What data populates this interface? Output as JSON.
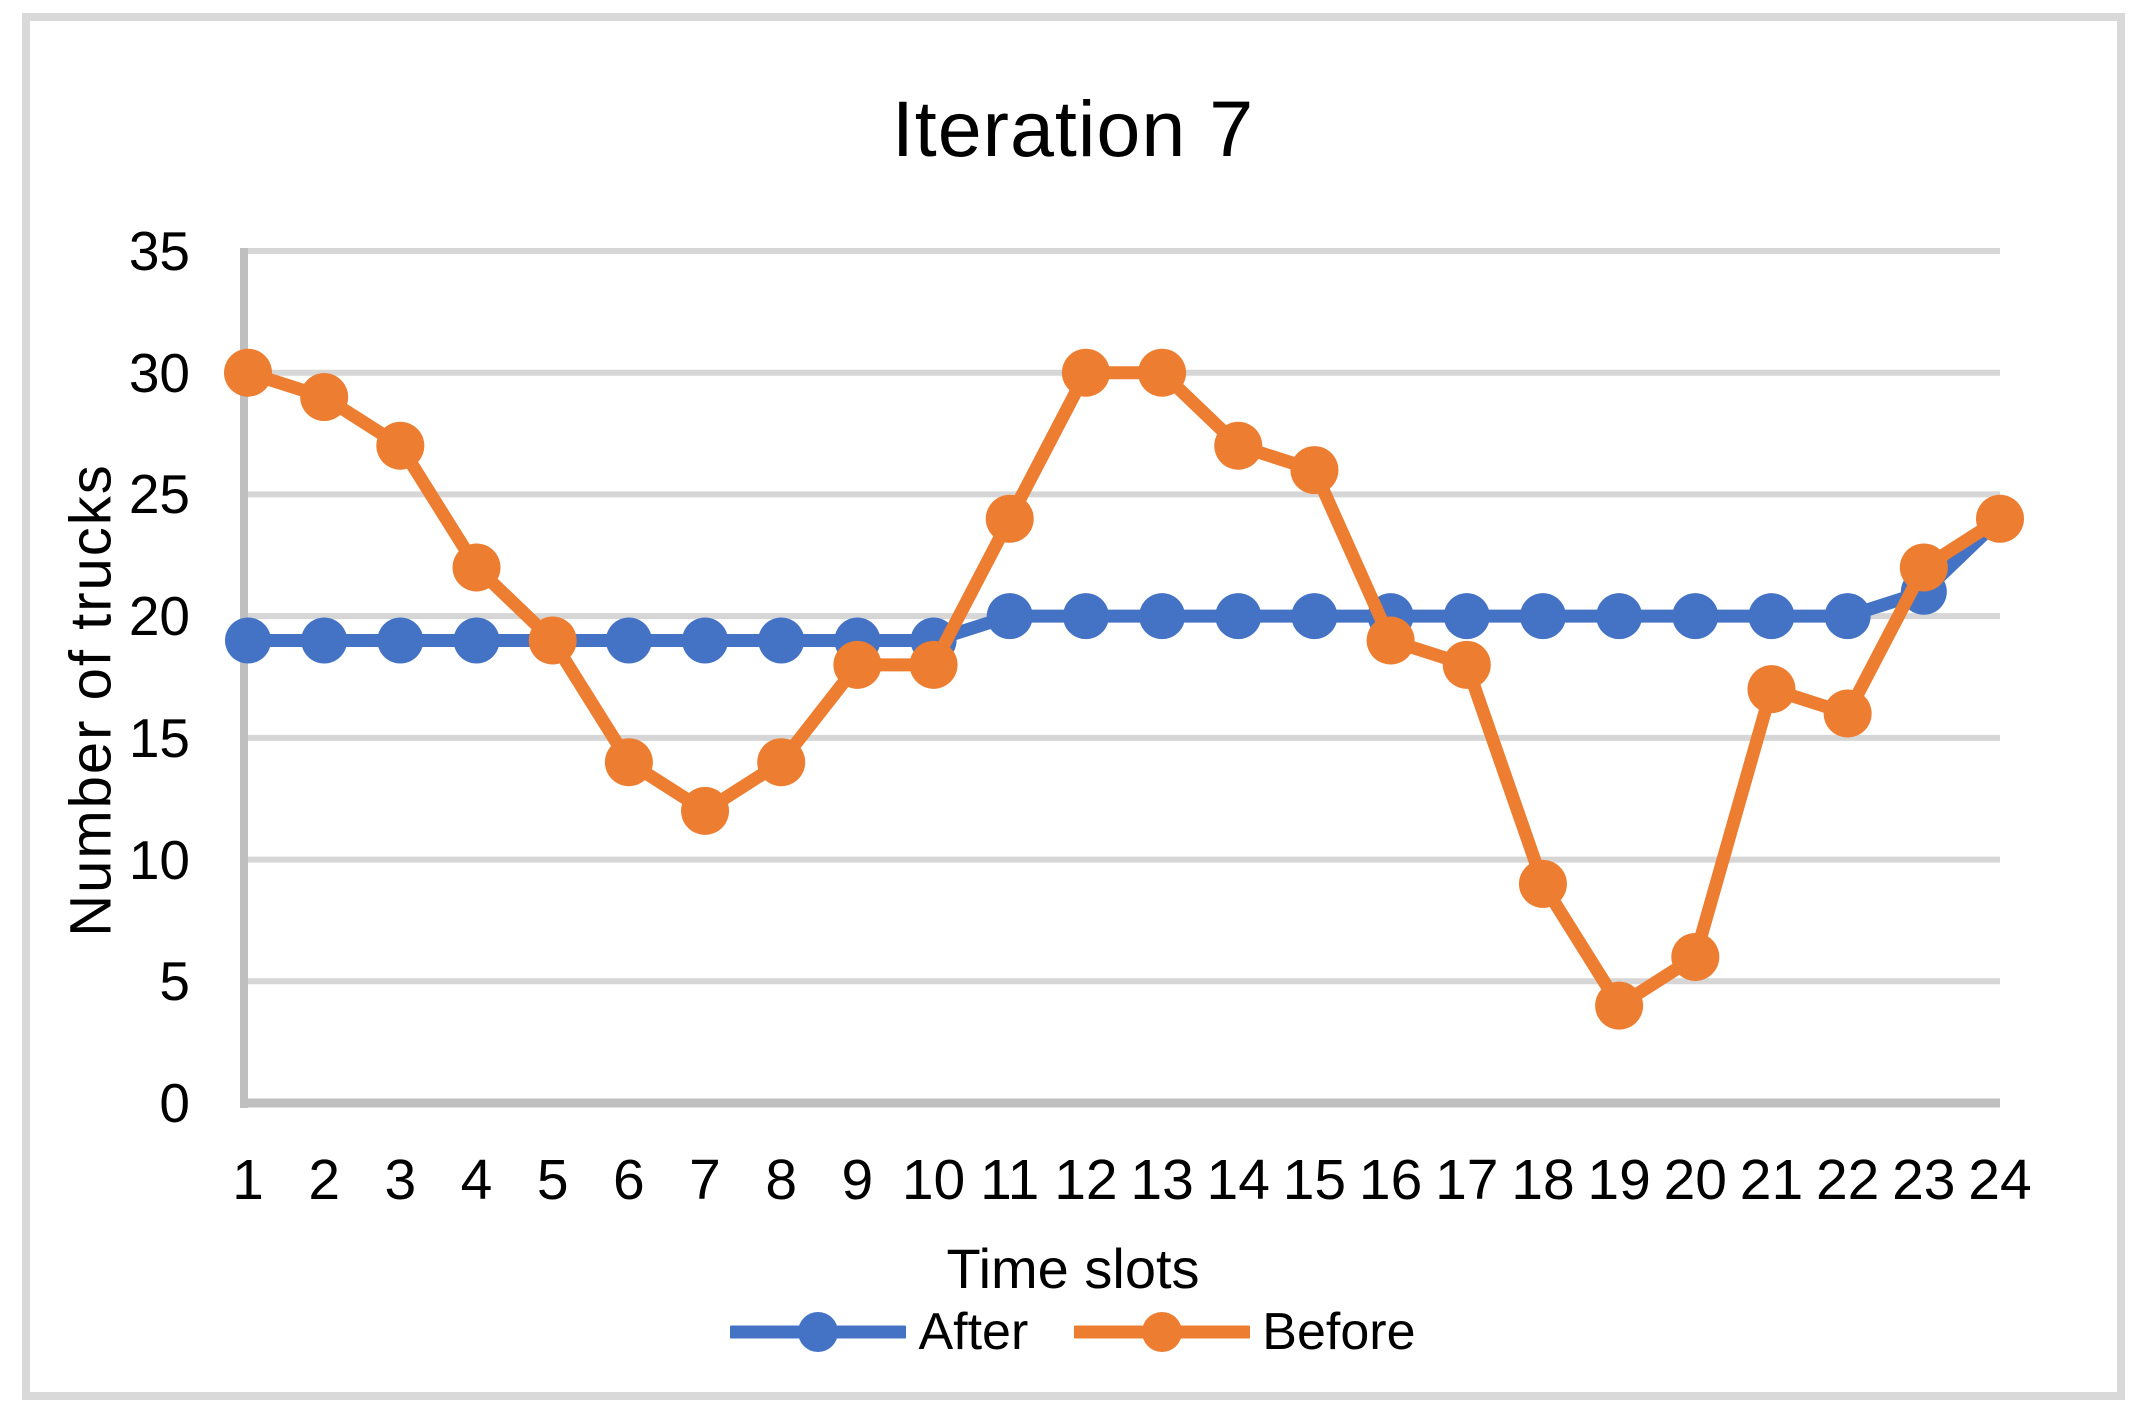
{
  "title": "Iteration 7",
  "y_axis": {
    "title": "Number of trucks",
    "tick_labels": [
      "0",
      "5",
      "10",
      "15",
      "20",
      "25",
      "30",
      "35"
    ],
    "tick_values": [
      0,
      5,
      10,
      15,
      20,
      25,
      30,
      35
    ]
  },
  "x_axis": {
    "title": "Time slots",
    "tick_labels": [
      "1",
      "2",
      "3",
      "4",
      "5",
      "6",
      "7",
      "8",
      "9",
      "10",
      "11",
      "12",
      "13",
      "14",
      "15",
      "16",
      "17",
      "18",
      "19",
      "20",
      "21",
      "22",
      "23",
      "24"
    ]
  },
  "legend": {
    "items": [
      {
        "label": "After",
        "color": "#4472C4",
        "marker": "circle-on-line"
      },
      {
        "label": "Before",
        "color": "#ED7D31",
        "marker": "circle-on-line"
      }
    ],
    "position": "bottom"
  },
  "colors": {
    "series_after": "#4472C4",
    "series_before": "#ED7D31",
    "gridline": "#D6D6D6",
    "axis_line": "#BFBFBF",
    "frame_border": "#D9D9D9",
    "text": "#000000",
    "background": "#FFFFFF"
  },
  "chart_data": {
    "type": "line",
    "title": "Iteration 7",
    "xlabel": "Time slots",
    "ylabel": "Number of trucks",
    "x": [
      1,
      2,
      3,
      4,
      5,
      6,
      7,
      8,
      9,
      10,
      11,
      12,
      13,
      14,
      15,
      16,
      17,
      18,
      19,
      20,
      21,
      22,
      23,
      24
    ],
    "series": [
      {
        "name": "After",
        "color": "#4472C4",
        "marker_radius": 23,
        "values": [
          19,
          19,
          19,
          19,
          19,
          19,
          19,
          19,
          19,
          19,
          20,
          20,
          20,
          20,
          20,
          20,
          20,
          20,
          20,
          20,
          20,
          20,
          21,
          24
        ]
      },
      {
        "name": "Before",
        "color": "#ED7D31",
        "marker_radius": 24,
        "values": [
          30,
          29,
          27,
          22,
          19,
          14,
          12,
          14,
          18,
          18,
          24,
          30,
          30,
          27,
          26,
          19,
          18,
          9,
          4,
          6,
          17,
          16,
          22,
          24
        ]
      }
    ],
    "ylim": [
      0,
      35
    ],
    "y_tick_step": 5,
    "grid": true,
    "legend_position": "bottom"
  }
}
